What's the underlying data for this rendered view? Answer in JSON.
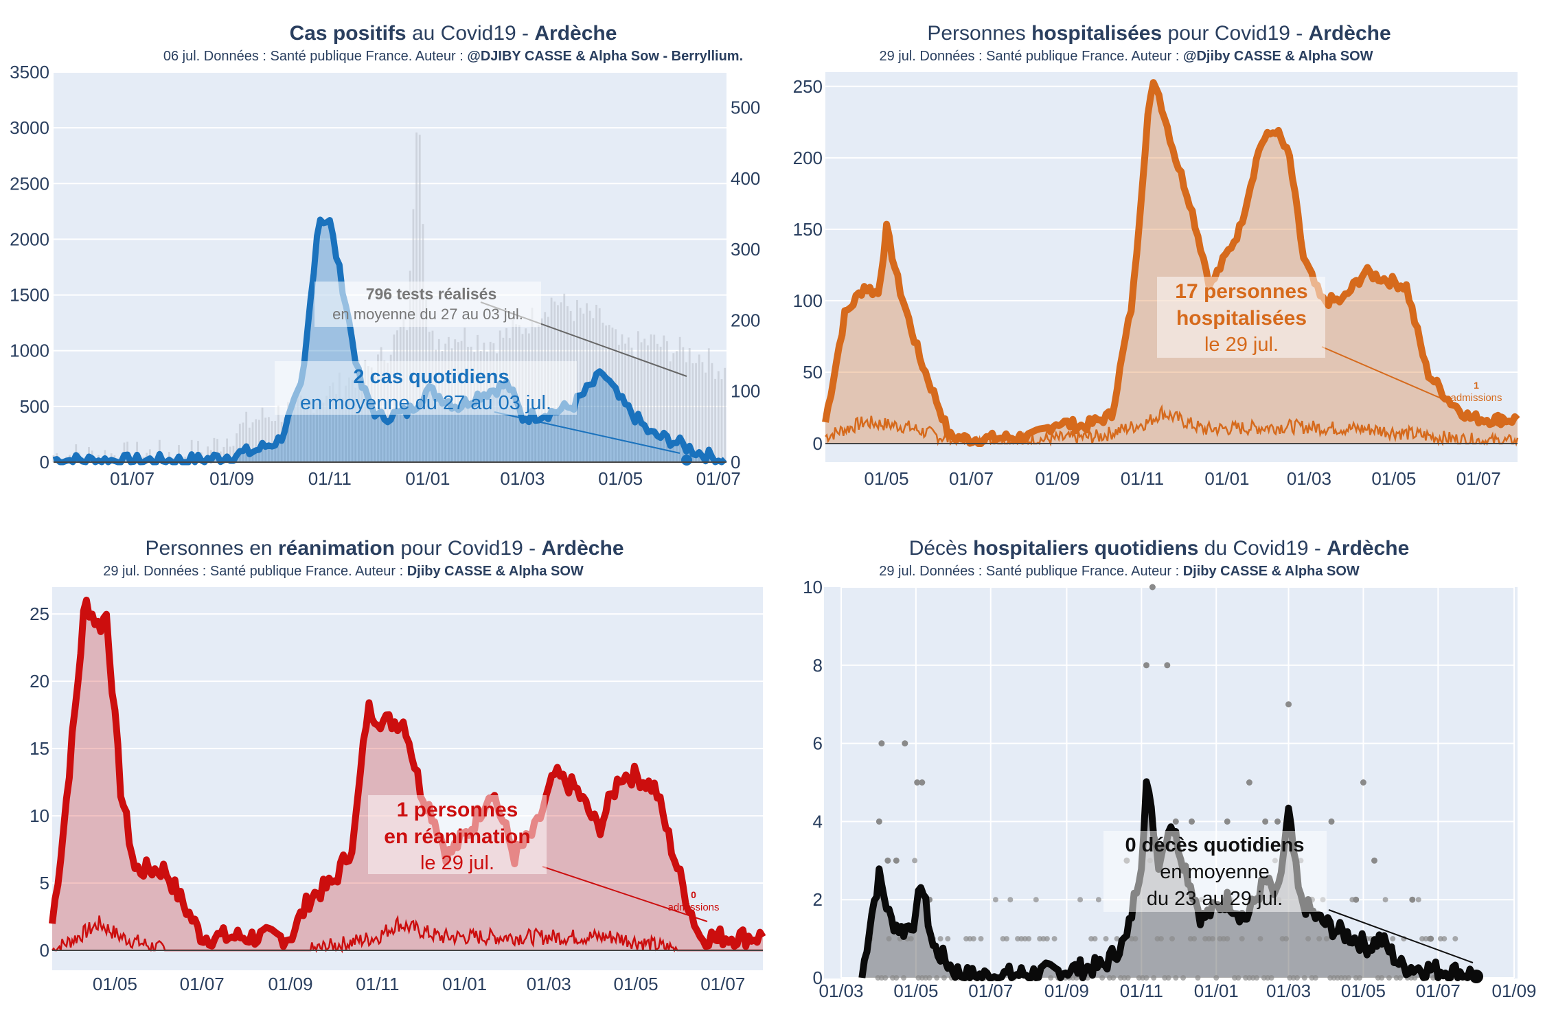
{
  "colors": {
    "blue": "#1a72bd",
    "orange": "#d66a1c",
    "red": "#cc0e0e",
    "black": "#0a0a0a",
    "grey": "#8a8a8a",
    "plotbg": "#e5ecf6",
    "grid": "#ffffff"
  },
  "charts": [
    {
      "title": {
        "pre": "",
        "b1": "Cas positifs",
        "mid": " au Covid19 - ",
        "b2": "Ardèche"
      },
      "subtitle": {
        "text": "06 jul. Données : Santé publique France. Auteur : ",
        "bold": "@DJIBY CASSE & Alpha Sow - Berryllium."
      },
      "y_ticks": [
        "0",
        "500",
        "1000",
        "1500",
        "2000",
        "2500",
        "3000",
        "3500"
      ],
      "y2_ticks": [
        "0",
        "100",
        "200",
        "300",
        "400",
        "500"
      ],
      "x_ticks": [
        "01/07",
        "01/09",
        "01/11",
        "01/01",
        "01/03",
        "01/05",
        "01/07"
      ],
      "annotations": [
        {
          "bold": "796 tests réalisés",
          "lines": [
            "en moyenne du 27 au 03 jul."
          ]
        },
        {
          "bold": "2 cas quotidiens",
          "lines": [
            "en moyenne du 27 au 03 jul."
          ]
        }
      ]
    },
    {
      "title": {
        "pre": "Personnes ",
        "b1": "hospitalisées",
        "mid": " pour Covid19 - ",
        "b2": "Ardèche"
      },
      "subtitle": {
        "text": "29 jul. Données : Santé publique France. Auteur : ",
        "bold": "@Djiby CASSE & Alpha SOW"
      },
      "y_ticks": [
        "0",
        "50",
        "100",
        "150",
        "200",
        "250"
      ],
      "x_ticks": [
        "01/05",
        "01/07",
        "01/09",
        "01/11",
        "01/01",
        "01/03",
        "01/05",
        "01/07"
      ],
      "annotations": [
        {
          "bold": "17 personnes",
          "bold2": "hospitalisées",
          "lines": [
            "le 29 jul."
          ]
        },
        {
          "bold": "1",
          "lines": [
            "admissions"
          ]
        }
      ]
    },
    {
      "title": {
        "pre": "Personnes en ",
        "b1": "réanimation",
        "mid": " pour Covid19 - ",
        "b2": "Ardèche"
      },
      "subtitle": {
        "text": "29 jul. Données : Santé publique France. Auteur : ",
        "bold": "Djiby CASSE & Alpha SOW"
      },
      "y_ticks": [
        "0",
        "5",
        "10",
        "15",
        "20",
        "25"
      ],
      "x_ticks": [
        "01/05",
        "01/07",
        "01/09",
        "01/11",
        "01/01",
        "01/03",
        "01/05",
        "01/07"
      ],
      "annotations": [
        {
          "bold": "1 personnes",
          "bold2": "en réanimation",
          "lines": [
            "le 29 jul."
          ]
        },
        {
          "bold": "0",
          "lines": [
            "admissions"
          ]
        }
      ]
    },
    {
      "title": {
        "pre": "Décès ",
        "b1": "hospitaliers quotidiens",
        "mid": " du Covid19 - ",
        "b2": "Ardèche"
      },
      "subtitle": {
        "text": "29 jul. Données : Santé publique France. Auteur : ",
        "bold": "Djiby CASSE & Alpha SOW"
      },
      "y_ticks": [
        "0",
        "2",
        "4",
        "6",
        "8",
        "10"
      ],
      "x_ticks": [
        "01/03",
        "01/05",
        "01/07",
        "01/09",
        "01/11",
        "01/01",
        "01/03",
        "01/05",
        "01/07",
        "01/09"
      ],
      "annotations": [
        {
          "bold": "0 décès quotidiens",
          "lines": [
            "en moyenne",
            "du 23 au 29 jul."
          ]
        }
      ]
    }
  ],
  "chart_data": [
    {
      "type": "line",
      "title": "Cas positifs au Covid19 - Ardèche",
      "ylim": [
        0,
        3500
      ],
      "y2lim": [
        0,
        550
      ],
      "x_range": [
        "2020-05-13",
        "2021-07-06"
      ],
      "series": [
        {
          "x": [
            "2020-05-13",
            "2020-07-01",
            "2020-08-15",
            "2020-09-15",
            "2020-10-01",
            "2020-10-15",
            "2020-10-25",
            "2020-11-01",
            "2020-11-10",
            "2020-11-20",
            "2020-12-01",
            "2020-12-20",
            "2021-01-01",
            "2021-01-20",
            "2021-02-01",
            "2021-02-20",
            "2021-03-01",
            "2021-03-20",
            "2021-04-01",
            "2021-04-20",
            "2021-05-01",
            "2021-05-20",
            "2021-06-01",
            "2021-06-20",
            "2021-07-06"
          ],
          "values": [
            20,
            10,
            20,
            100,
            200,
            700,
            2200,
            2150,
            1500,
            700,
            400,
            450,
            650,
            500,
            600,
            700,
            400,
            450,
            500,
            800,
            550,
            250,
            200,
            80,
            2
          ]
        },
        {
          "x": [
            "2020-05-13",
            "2020-07-01",
            "2020-08-15",
            "2020-09-15",
            "2020-10-15",
            "2020-11-01",
            "2020-12-01",
            "2020-12-20",
            "2020-12-26",
            "2021-01-01",
            "2021-01-20",
            "2021-02-10",
            "2021-03-01",
            "2021-03-20",
            "2021-04-01",
            "2021-04-20",
            "2021-05-01",
            "2021-05-20",
            "2021-06-01",
            "2021-06-20",
            "2021-07-06"
          ],
          "values": [
            10,
            10,
            15,
            60,
            80,
            100,
            140,
            200,
            540,
            170,
            180,
            170,
            190,
            230,
            215,
            200,
            160,
            170,
            160,
            150,
            125
          ]
        }
      ]
    },
    {
      "type": "area",
      "title": "Personnes hospitalisées pour Covid19 - Ardèche",
      "ylim": [
        0,
        260
      ],
      "x_range": [
        "2020-03-18",
        "2021-07-29"
      ],
      "series": [
        {
          "x": [
            "2020-03-18",
            "2020-04-01",
            "2020-04-15",
            "2020-04-25",
            "2020-05-01",
            "2020-05-10",
            "2020-05-25",
            "2020-06-10",
            "2020-06-15",
            "2020-07-01",
            "2020-08-15",
            "2020-09-01",
            "2020-09-20",
            "2020-10-10",
            "2020-10-25",
            "2020-11-05",
            "2020-11-10",
            "2020-11-25",
            "2020-12-05",
            "2020-12-20",
            "2021-01-10",
            "2021-01-25",
            "2021-02-05",
            "2021-02-15",
            "2021-02-25",
            "2021-03-10",
            "2021-03-25",
            "2021-04-10",
            "2021-04-25",
            "2021-05-10",
            "2021-05-25",
            "2021-06-10",
            "2021-06-25",
            "2021-07-10",
            "2021-07-29"
          ],
          "values": [
            15,
            90,
            110,
            105,
            150,
            110,
            60,
            20,
            5,
            3,
            5,
            15,
            12,
            20,
            100,
            230,
            255,
            200,
            170,
            110,
            150,
            210,
            220,
            200,
            130,
            100,
            100,
            120,
            115,
            110,
            50,
            30,
            18,
            17,
            17
          ]
        },
        {
          "x": [
            "2020-03-18",
            "2020-04-15",
            "2020-05-15",
            "2020-06-15",
            "2020-07-01",
            "2020-10-01",
            "2020-11-05",
            "2020-11-15",
            "2020-12-15",
            "2021-02-15",
            "2021-04-15",
            "2021-06-15",
            "2021-07-29"
          ],
          "values": [
            5,
            15,
            12,
            3,
            0,
            5,
            15,
            22,
            10,
            12,
            10,
            3,
            1
          ]
        }
      ]
    },
    {
      "type": "area",
      "title": "Personnes en réanimation pour Covid19 - Ardèche",
      "ylim": [
        0,
        27
      ],
      "x_range": [
        "2020-03-18",
        "2021-07-29"
      ],
      "series": [
        {
          "x": [
            "2020-03-18",
            "2020-03-25",
            "2020-04-05",
            "2020-04-10",
            "2020-04-20",
            "2020-04-25",
            "2020-05-05",
            "2020-05-15",
            "2020-05-25",
            "2020-06-05",
            "2020-06-15",
            "2020-07-01",
            "2020-09-01",
            "2020-09-15",
            "2020-10-01",
            "2020-10-15",
            "2020-10-25",
            "2020-11-05",
            "2020-11-20",
            "2020-12-01",
            "2020-12-10",
            "2020-12-20",
            "2021-01-05",
            "2021-01-20",
            "2021-02-05",
            "2021-02-20",
            "2021-03-05",
            "2021-03-20",
            "2021-04-05",
            "2021-04-20",
            "2021-05-01",
            "2021-05-15",
            "2021-05-25",
            "2021-06-05",
            "2021-06-15",
            "2021-07-01",
            "2021-07-29"
          ],
          "values": [
            2,
            8,
            20,
            26,
            24,
            25,
            12,
            6,
            6,
            6,
            4,
            1,
            1,
            4,
            5,
            8,
            18,
            17,
            17,
            12,
            10,
            7,
            9,
            12,
            7,
            9,
            13,
            12,
            9,
            13,
            13,
            12,
            8,
            4,
            1,
            1,
            1
          ]
        },
        {
          "x": [
            "2020-03-18",
            "2020-04-05",
            "2020-04-20",
            "2020-05-05",
            "2020-06-05",
            "2020-07-01",
            "2020-09-15",
            "2020-11-01",
            "2020-11-15",
            "2020-12-15",
            "2021-02-15",
            "2021-04-15",
            "2021-06-01",
            "2021-07-29"
          ],
          "values": [
            0,
            1,
            2,
            1,
            0,
            0,
            0,
            1,
            2,
            1,
            1,
            1,
            0,
            0
          ]
        }
      ]
    },
    {
      "type": "scatter",
      "title": "Décès hospitaliers quotidiens du Covid19 - Ardèche",
      "ylim": [
        0,
        10
      ],
      "x_range": [
        "2020-03-01",
        "2021-09-01"
      ],
      "series": [
        {
          "name": "moyenne",
          "x": [
            "2020-03-18",
            "2020-03-25",
            "2020-04-01",
            "2020-04-10",
            "2020-04-20",
            "2020-05-01",
            "2020-05-05",
            "2020-05-15",
            "2020-06-01",
            "2020-06-10",
            "2020-07-01",
            "2020-08-01",
            "2020-09-01",
            "2020-10-01",
            "2020-10-20",
            "2020-11-01",
            "2020-11-05",
            "2020-11-15",
            "2020-11-25",
            "2020-12-05",
            "2020-12-20",
            "2021-01-10",
            "2021-01-25",
            "2021-02-10",
            "2021-02-20",
            "2021-03-01",
            "2021-03-10",
            "2021-03-25",
            "2021-04-10",
            "2021-04-25",
            "2021-05-05",
            "2021-05-15",
            "2021-06-01",
            "2021-07-01",
            "2021-07-29"
          ],
          "values": [
            0,
            1.5,
            2.6,
            1.5,
            1.2,
            1.5,
            2.5,
            0.8,
            0.2,
            0.05,
            0.05,
            0.1,
            0.2,
            0.3,
            1.0,
            3.0,
            5.0,
            3.0,
            4.0,
            3.0,
            1.5,
            2.0,
            1.5,
            2.5,
            2.0,
            4.2,
            2.0,
            1.5,
            1.2,
            1.0,
            0.8,
            1.0,
            0.3,
            0.2,
            0.1
          ]
        },
        {
          "name": "décès",
          "x": [
            "2020-04-01",
            "2020-04-03",
            "2020-04-08",
            "2020-04-15",
            "2020-04-22",
            "2020-05-02",
            "2020-05-06",
            "2020-05-12",
            "2020-10-20",
            "2020-11-05",
            "2020-11-10",
            "2020-11-22",
            "2020-11-29",
            "2020-12-12",
            "2021-01-10",
            "2021-01-28",
            "2021-02-10",
            "2021-02-20",
            "2021-03-01",
            "2021-03-20",
            "2021-04-05",
            "2021-04-25",
            "2021-05-01",
            "2021-05-10",
            "2021-06-10",
            "2021-06-25"
          ],
          "values": [
            4,
            6,
            3,
            3,
            6,
            5,
            5,
            2,
            3,
            8,
            10,
            8,
            4,
            4,
            4,
            5,
            4,
            4,
            7,
            2,
            4,
            2,
            5,
            3,
            2,
            1
          ]
        }
      ]
    }
  ]
}
